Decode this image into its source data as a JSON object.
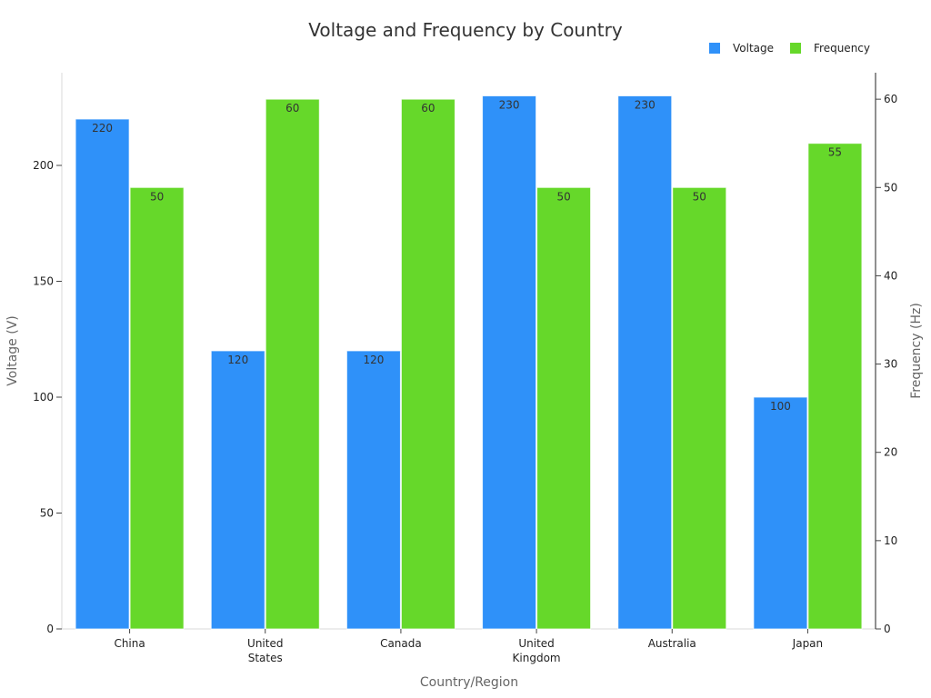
{
  "chart_data": {
    "type": "bar",
    "title": "Voltage and Frequency by Country",
    "xlabel": "Country/Region",
    "ylabel_left": "Voltage (V)",
    "ylabel_right": "Frequency (Hz)",
    "categories": [
      [
        "China"
      ],
      [
        "United",
        "States"
      ],
      [
        "Canada"
      ],
      [
        "United",
        "Kingdom"
      ],
      [
        "Australia"
      ],
      [
        "Japan"
      ]
    ],
    "series": [
      {
        "name": "Voltage",
        "axis": "left",
        "color": "#2f91f9",
        "values": [
          220,
          120,
          120,
          230,
          230,
          100
        ]
      },
      {
        "name": "Frequency",
        "axis": "right",
        "color": "#66d82a",
        "values": [
          50,
          60,
          60,
          50,
          50,
          55
        ]
      }
    ],
    "left_axis": {
      "min": 0,
      "max": 240,
      "ticks": [
        0,
        50,
        100,
        150,
        200
      ]
    },
    "right_axis": {
      "min": 0,
      "max": 63,
      "ticks": [
        0,
        10,
        20,
        30,
        40,
        50,
        60
      ]
    },
    "legend": {
      "position": "top-right",
      "items": [
        "Voltage",
        "Frequency"
      ]
    },
    "grid": false
  }
}
